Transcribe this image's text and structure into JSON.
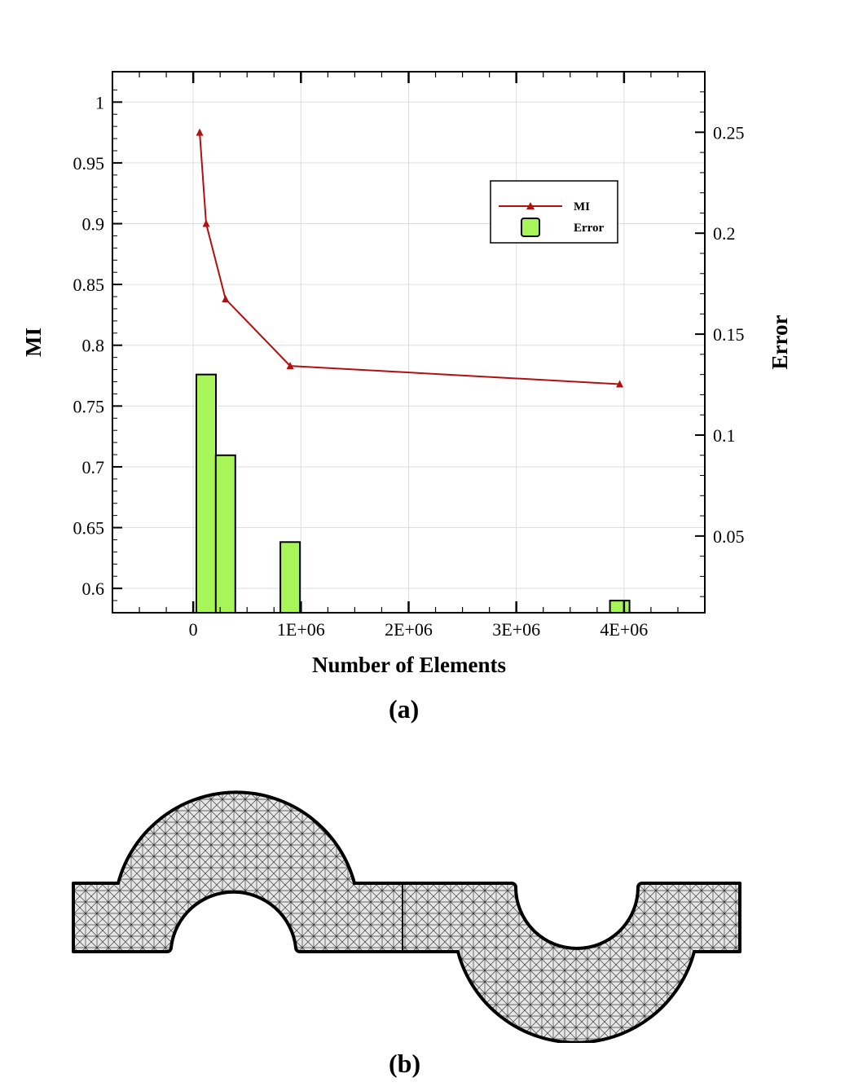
{
  "chart_data": {
    "type": "bar+line",
    "x_axis": {
      "label": "Number of Elements",
      "range": [
        -750000,
        4750000
      ],
      "ticks": [
        0,
        1000000,
        2000000,
        3000000,
        4000000
      ],
      "tick_labels": [
        "0",
        "1E+06",
        "2E+06",
        "3E+06",
        "4E+06"
      ]
    },
    "y_left": {
      "label": "MI",
      "range": [
        0.58,
        1.025
      ],
      "ticks": [
        0.6,
        0.65,
        0.7,
        0.75,
        0.8,
        0.85,
        0.9,
        0.95,
        1
      ],
      "tick_labels": [
        "0.6",
        "0.65",
        "0.7",
        "0.75",
        "0.8",
        "0.85",
        "0.9",
        "0.95",
        "1"
      ]
    },
    "y_right": {
      "label": "Error",
      "range": [
        0.012,
        0.28
      ],
      "ticks": [
        0.05,
        0.1,
        0.15,
        0.2,
        0.25
      ],
      "tick_labels": [
        "0.05",
        "0.1",
        "0.15",
        "0.2",
        "0.25"
      ]
    },
    "grid": true,
    "legend": {
      "position": "top-right",
      "entries": [
        "MI",
        "Error"
      ]
    },
    "series": [
      {
        "name": "MI",
        "type": "line",
        "axis": "left",
        "color": "#b01010",
        "x": [
          60000,
          120000,
          300000,
          900000,
          3960000
        ],
        "y": [
          0.975,
          0.9,
          0.838,
          0.783,
          0.768
        ]
      },
      {
        "name": "Error",
        "type": "bar",
        "axis": "right",
        "color": "#a8f55a",
        "x": [
          120000,
          300000,
          900000,
          3960000
        ],
        "y": [
          0.13,
          0.09,
          0.047,
          0.018
        ]
      }
    ]
  },
  "panels": {
    "a": "(a)",
    "b": "(b)"
  }
}
